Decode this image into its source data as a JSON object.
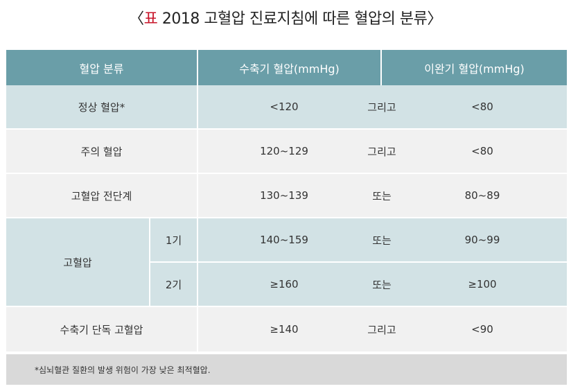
{
  "title": {
    "open": "〈",
    "mark": "표",
    "text": " 2018 고혈압 진료지침에 따른 혈압의 분류〉"
  },
  "header": {
    "category": "혈압 분류",
    "systolic": "수축기 혈압(mmHg)",
    "diastolic": "이완기 혈압(mmHg)"
  },
  "rows": [
    {
      "category": "정상 혈압*",
      "systolic": "<120",
      "logic": "그리고",
      "diastolic": "<80"
    },
    {
      "category": "주의 혈압",
      "systolic": "120~129",
      "logic": "그리고",
      "diastolic": "<80"
    },
    {
      "category": "고혈압 전단계",
      "systolic": "130~139",
      "logic": "또는",
      "diastolic": "80~89"
    },
    {
      "category": "고혈압",
      "stage": "1기",
      "systolic": "140~159",
      "logic": "또는",
      "diastolic": "90~99"
    },
    {
      "stage": "2기",
      "systolic": "≥160",
      "logic": "또는",
      "diastolic": "≥100"
    },
    {
      "category": "수축기 단독 고혈압",
      "systolic": "≥140",
      "logic": "그리고",
      "diastolic": "<90"
    }
  ],
  "footnote": "*심뇌혈관 질환의 발생 위험이 가장 낮은 최적혈압."
}
